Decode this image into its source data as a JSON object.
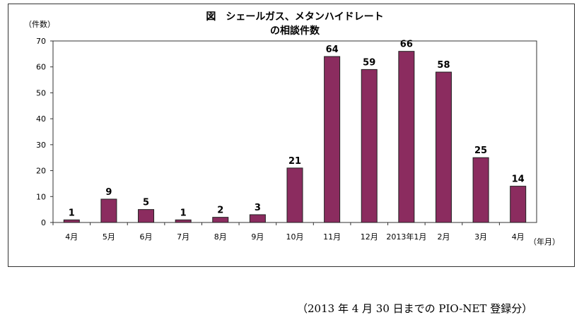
{
  "chart_data": {
    "type": "bar",
    "title": "図　シェールガス、メタンハイドレート",
    "subtitle": "の相談件数",
    "ylabel": "（件数）",
    "xlabel": "（年月）",
    "categories": [
      "4月",
      "5月",
      "6月",
      "7月",
      "8月",
      "9月",
      "10月",
      "11月",
      "12月",
      "2013年1月",
      "2月",
      "3月",
      "4月"
    ],
    "values": [
      1,
      9,
      5,
      1,
      2,
      3,
      21,
      64,
      59,
      66,
      58,
      25,
      14
    ],
    "yticks": [
      0,
      10,
      20,
      30,
      40,
      50,
      60,
      70
    ],
    "ylim": [
      0,
      70
    ],
    "grid": false,
    "legend": "none",
    "bar_color": "#8b2c5f"
  },
  "footer": {
    "source_note": "（2013 年 4 月 30 日までの PIO-NET 登録分）"
  }
}
